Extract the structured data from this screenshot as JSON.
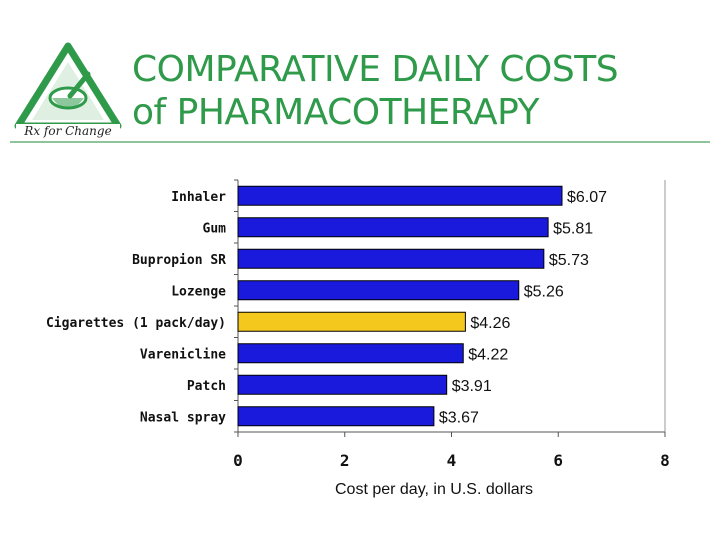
{
  "header": {
    "title_line1": "COMPARATIVE DAILY COSTS",
    "title_line2": "of PHARMACOTHERAPY",
    "logo_text": "Rx for Change"
  },
  "colors": {
    "title": "#2e9a4a",
    "bar_default": "#1a1adc",
    "bar_highlight": "#f5c81e",
    "logo_green": "#2e9a4a"
  },
  "chart_data": {
    "type": "bar",
    "orientation": "horizontal",
    "categories": [
      "Inhaler",
      "Gum",
      "Bupropion SR",
      "Lozenge",
      "Cigarettes (1 pack/day)",
      "Varenicline",
      "Patch",
      "Nasal spray"
    ],
    "values": [
      6.07,
      5.81,
      5.73,
      5.26,
      4.26,
      4.22,
      3.91,
      3.67
    ],
    "value_labels": [
      "$6.07",
      "$5.81",
      "$5.73",
      "$5.26",
      "$4.26",
      "$4.22",
      "$3.91",
      "$3.67"
    ],
    "highlight_category": "Cigarettes (1 pack/day)",
    "xlabel": "Cost per day, in U.S. dollars",
    "ylabel": "",
    "title": "",
    "xlim": [
      0,
      8
    ],
    "xticks": [
      0,
      2,
      4,
      6,
      8
    ],
    "xtick_labels": [
      "0",
      "2",
      "4",
      "6",
      "8"
    ],
    "grid": false,
    "legend": "none"
  }
}
